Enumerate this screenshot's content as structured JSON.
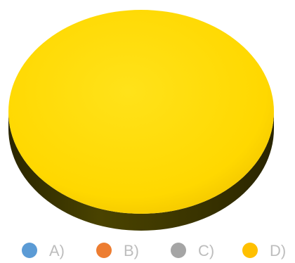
{
  "chart_data": {
    "type": "pie",
    "style": "3d",
    "title": "",
    "categories": [
      "A)",
      "B)",
      "C)",
      "D)"
    ],
    "values": [
      0,
      0,
      0,
      100
    ],
    "colors": [
      "#5b9bd5",
      "#ed7d31",
      "#a5a5a5",
      "#ffc000"
    ],
    "legend": {
      "position": "bottom"
    }
  }
}
